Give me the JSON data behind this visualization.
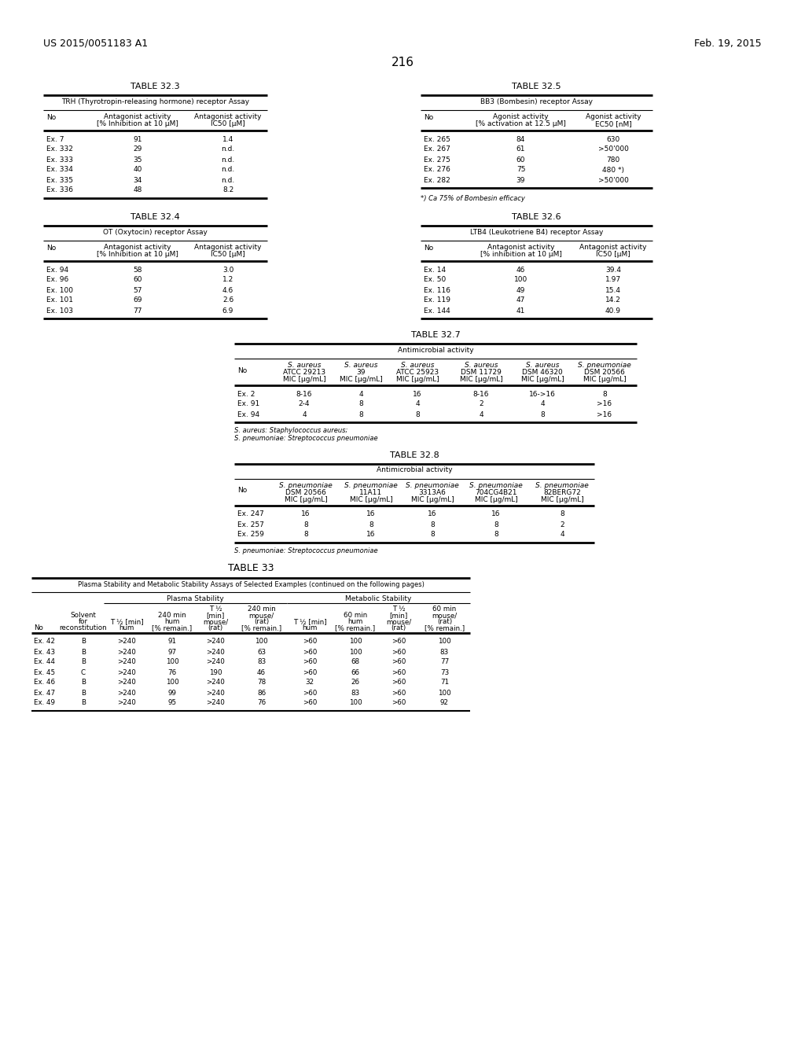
{
  "header_left": "US 2015/0051183 A1",
  "header_right": "Feb. 19, 2015",
  "page_number": "216",
  "background_color": "#ffffff",
  "text_color": "#000000",
  "table323": {
    "title": "TABLE 32.3",
    "subtitle": "TRH (Thyrotropin-releasing hormone) receptor Assay",
    "col_headers": [
      "No",
      "Antagonist activity\n[% Inhibition at 10 μM]",
      "Antagonist activity\nIC50 [μM]"
    ],
    "rows": [
      [
        "Ex. 7",
        "91",
        "1.4"
      ],
      [
        "Ex. 332",
        "29",
        "n.d."
      ],
      [
        "Ex. 333",
        "35",
        "n.d."
      ],
      [
        "Ex. 334",
        "40",
        "n.d."
      ],
      [
        "Ex. 335",
        "34",
        "n.d."
      ],
      [
        "Ex. 336",
        "48",
        "8.2"
      ]
    ]
  },
  "table325": {
    "title": "TABLE 32.5",
    "subtitle": "BB3 (Bombesin) receptor Assay",
    "col_headers": [
      "No",
      "Agonist activity\n[% activation at 12.5 μM]",
      "Agonist activity\nEC50 [nM]"
    ],
    "rows": [
      [
        "Ex. 265",
        "84",
        "630"
      ],
      [
        "Ex. 267",
        "61",
        ">50'000"
      ],
      [
        "Ex. 275",
        "60",
        "780"
      ],
      [
        "Ex. 276",
        "75",
        "480 *)"
      ],
      [
        "Ex. 282",
        "39",
        ">50'000"
      ]
    ],
    "footnote": "*) Ca 75% of Bombesin efficacy"
  },
  "table324": {
    "title": "TABLE 32.4",
    "subtitle": "OT (Oxytocin) receptor Assay",
    "col_headers": [
      "No",
      "Antagonist activity\n[% Inhibition at 10 μM]",
      "Antagonist activity\nIC50 [μM]"
    ],
    "rows": [
      [
        "Ex. 94",
        "58",
        "3.0"
      ],
      [
        "Ex. 96",
        "60",
        "1.2"
      ],
      [
        "Ex. 100",
        "57",
        "4.6"
      ],
      [
        "Ex. 101",
        "69",
        "2.6"
      ],
      [
        "Ex. 103",
        "77",
        "6.9"
      ]
    ]
  },
  "table326": {
    "title": "TABLE 32.6",
    "subtitle": "LTB4 (Leukotriene B4) receptor Assay",
    "col_headers": [
      "No",
      "Antagonist activity\n[% inhibition at 10 μM]",
      "Antagonist activity\nIC50 [μM]"
    ],
    "rows": [
      [
        "Ex. 14",
        "46",
        "39.4"
      ],
      [
        "Ex. 50",
        "100",
        "1.97"
      ],
      [
        "Ex. 116",
        "49",
        "15.4"
      ],
      [
        "Ex. 119",
        "47",
        "14.2"
      ],
      [
        "Ex. 144",
        "41",
        "40.9"
      ]
    ]
  },
  "table327": {
    "title": "TABLE 32.7",
    "subtitle": "Antimicrobial activity",
    "col_headers_line1": [
      "",
      "S. aureus",
      "S. aureus",
      "S. aureus",
      "S. aureus",
      "S. aureus",
      "S. pneumoniae"
    ],
    "col_headers_line2": [
      "",
      "ATCC 29213",
      "39",
      "ATCC 25923",
      "DSM 11729",
      "DSM 46320",
      "DSM 20566"
    ],
    "col_headers_line3": [
      "No",
      "MIC [μg/mL]",
      "MIC [μg/mL]",
      "MIC [μg/mL]",
      "MIC [μg/mL]",
      "MIC [μg/mL]",
      "MIC [μg/mL]"
    ],
    "rows": [
      [
        "Ex. 2",
        "8-16",
        "4",
        "16",
        "8-16",
        "16->16",
        "8"
      ],
      [
        "Ex. 91",
        "2-4",
        "8",
        "4",
        "2",
        "4",
        ">16"
      ],
      [
        "Ex. 94",
        "4",
        "8",
        "8",
        "4",
        "8",
        ">16"
      ]
    ],
    "footnotes": [
      "S. aureus: Staphylococcus aureus;",
      "S. pneumoniae: Streptococcus pneumoniae"
    ]
  },
  "table328": {
    "title": "TABLE 32.8",
    "subtitle": "Antimicrobial activity",
    "col_headers_line1": [
      "",
      "S. pneumoniae",
      "S. pneumoniae",
      "S. pneumoniae",
      "S. pneumoniae",
      "S. pneumoniae"
    ],
    "col_headers_line2": [
      "",
      "DSM 20566",
      "11A11",
      "3313A6",
      "704CG4B21",
      "82BERG72"
    ],
    "col_headers_line3": [
      "No",
      "MIC [μg/mL]",
      "MIC [μg/mL]",
      "MIC [μg/mL]",
      "MIC [μg/mL]",
      "MIC [μg/mL]"
    ],
    "rows": [
      [
        "Ex. 247",
        "16",
        "16",
        "16",
        "16",
        "8"
      ],
      [
        "Ex. 257",
        "8",
        "8",
        "8",
        "8",
        "2"
      ],
      [
        "Ex. 259",
        "8",
        "16",
        "8",
        "8",
        "4"
      ]
    ],
    "footnotes": [
      "S. pneumoniae: Streptococcus pneumoniae"
    ]
  },
  "table33": {
    "title": "TABLE 33",
    "subtitle": "Plasma Stability and Metabolic Stability Assays of Selected Examples (continued on the following pages)",
    "col_headers_group1": "Plasma Stability",
    "col_headers_group2": "Metabolic Stability",
    "rows": [
      [
        "Ex. 42",
        "B",
        ">240",
        "91",
        ">240",
        "100",
        ">60",
        "100",
        ">60",
        "100"
      ],
      [
        "Ex. 43",
        "B",
        ">240",
        "97",
        ">240",
        "63",
        ">60",
        "100",
        ">60",
        "83"
      ],
      [
        "Ex. 44",
        "B",
        ">240",
        "100",
        ">240",
        "83",
        ">60",
        "68",
        ">60",
        "77"
      ],
      [
        "Ex. 45",
        "C",
        ">240",
        "76",
        "190",
        "46",
        ">60",
        "66",
        ">60",
        "73"
      ],
      [
        "Ex. 46",
        "B",
        ">240",
        "100",
        ">240",
        "78",
        "32",
        "26",
        ">60",
        "71"
      ],
      [
        "Ex. 47",
        "B",
        ">240",
        "99",
        ">240",
        "86",
        ">60",
        "83",
        ">60",
        "100"
      ],
      [
        "Ex. 49",
        "B",
        ">240",
        "95",
        ">240",
        "76",
        ">60",
        "100",
        ">60",
        "92"
      ]
    ]
  }
}
